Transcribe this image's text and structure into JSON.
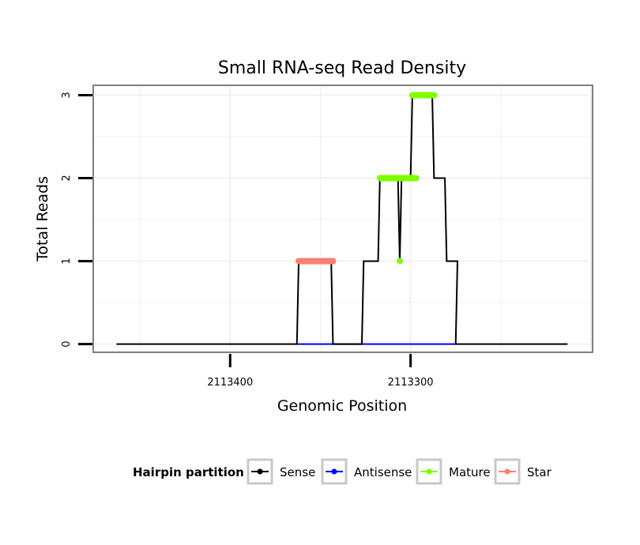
{
  "chart_data": {
    "type": "line",
    "title": "Small RNA-seq Read Density",
    "xlabel": "Genomic Position",
    "ylabel": "Total Reads",
    "x_reversed": true,
    "xlim": [
      2113475,
      2113200
    ],
    "ylim": [
      -0.08,
      3.1
    ],
    "xticks": [
      2113400,
      2113300
    ],
    "xtick_labels": [
      "2113400",
      "2113300"
    ],
    "yticks": [
      0,
      1,
      2,
      3
    ],
    "ytick_labels": [
      "0",
      "1",
      "2",
      "3"
    ],
    "legend": {
      "title": "Hairpin partition",
      "position": "bottom",
      "entries": [
        {
          "name": "Sense",
          "color": "#000000"
        },
        {
          "name": "Antisense",
          "color": "#0000FF"
        },
        {
          "name": "Mature",
          "color": "#7FFF00"
        },
        {
          "name": "Star",
          "color": "#FA8072"
        }
      ]
    },
    "series": [
      {
        "name": "Sense",
        "color": "#000000",
        "x": [
          2113463,
          2113363,
          2113362,
          2113357,
          2113344,
          2113343,
          2113327,
          2113326,
          2113318,
          2113317,
          2113308,
          2113307,
          2113306,
          2113305,
          2113300,
          2113299,
          2113288,
          2113287,
          2113281,
          2113280,
          2113274,
          2113275,
          2113213
        ],
        "y": [
          0,
          0,
          1,
          1,
          1,
          0,
          0,
          1,
          1,
          2,
          2,
          2,
          1,
          2,
          2,
          3,
          3,
          2,
          2,
          1,
          1,
          0,
          0
        ]
      },
      {
        "name": "Antisense",
        "color": "#0000FF",
        "x": [
          2113363,
          2113343,
          2113327,
          2113275
        ],
        "y": [
          0,
          0,
          0,
          0
        ]
      },
      {
        "name": "Mature",
        "color": "#7FFF00",
        "segments": [
          {
            "x": [
              2113317,
              2113297
            ],
            "y": [
              2,
              2
            ]
          },
          {
            "x": [
              2113299,
              2113287
            ],
            "y": [
              3,
              3
            ]
          }
        ],
        "points": [
          {
            "x": 2113306,
            "y": 1
          }
        ]
      },
      {
        "name": "Star",
        "color": "#FA8072",
        "segments": [
          {
            "x": [
              2113362,
              2113343
            ],
            "y": [
              1,
              1
            ]
          }
        ]
      }
    ]
  }
}
